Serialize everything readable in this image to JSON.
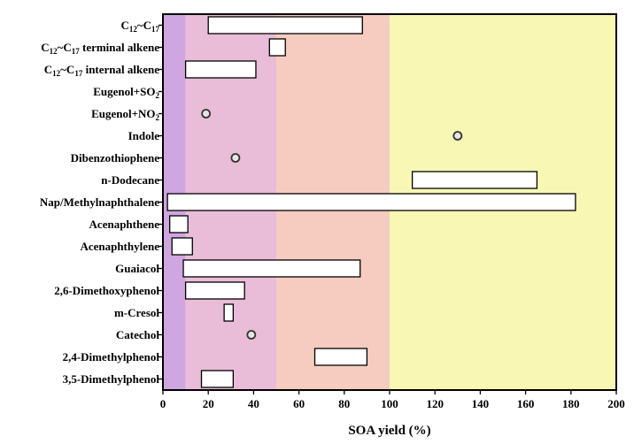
{
  "chart_data": {
    "type": "bar",
    "subtype": "floating-range with single-point markers",
    "xlabel": "SOA yield (%)",
    "ylabel": "",
    "xlim": [
      0,
      200
    ],
    "xticks": [
      "0",
      "20",
      "40",
      "60",
      "80",
      "100",
      "120",
      "140",
      "160",
      "180",
      "200"
    ],
    "grid": false,
    "legend": "none",
    "background_bands": [
      {
        "from": 0,
        "to": 10,
        "color": "#cfa6df"
      },
      {
        "from": 10,
        "to": 50,
        "color": "#e9bcd7"
      },
      {
        "from": 50,
        "to": 100,
        "color": "#f6ccc0"
      },
      {
        "from": 100,
        "to": 200,
        "color": "#f8f7b4"
      }
    ],
    "categories": [
      {
        "label": "C",
        "sub1": "12",
        "mid": "~C",
        "sub2": "17",
        "suffix": "",
        "min": 20,
        "max": 88
      },
      {
        "label": "C",
        "sub1": "12",
        "mid": "~C",
        "sub2": "17",
        "suffix": " terminal alkene",
        "min": 47,
        "max": 54
      },
      {
        "label": "C",
        "sub1": "12",
        "mid": "~C",
        "sub2": "17",
        "suffix": " internal alkene",
        "min": 10,
        "max": 41
      },
      {
        "label": "Eugenol+SO",
        "sub1": "2",
        "mid": "",
        "sub2": "",
        "suffix": "",
        "min": null,
        "max": null
      },
      {
        "label": "Eugenol+NO",
        "sub1": "2",
        "mid": "",
        "sub2": "",
        "suffix": "",
        "point": 19
      },
      {
        "label": "Indole",
        "sub1": "",
        "mid": "",
        "sub2": "",
        "suffix": "",
        "point": 130
      },
      {
        "label": "Dibenzothiophene",
        "sub1": "",
        "mid": "",
        "sub2": "",
        "suffix": "",
        "point": 32
      },
      {
        "label": "n-Dodecane",
        "sub1": "",
        "mid": "",
        "sub2": "",
        "suffix": "",
        "min": 110,
        "max": 165
      },
      {
        "label": "Nap/Methylnaphthalene",
        "sub1": "",
        "mid": "",
        "sub2": "",
        "suffix": "",
        "min": 2,
        "max": 182
      },
      {
        "label": "Acenaphthene",
        "sub1": "",
        "mid": "",
        "sub2": "",
        "suffix": "",
        "min": 3,
        "max": 11
      },
      {
        "label": "Acenaphthylene",
        "sub1": "",
        "mid": "",
        "sub2": "",
        "suffix": "",
        "min": 4,
        "max": 13
      },
      {
        "label": "Guaiacol",
        "sub1": "",
        "mid": "",
        "sub2": "",
        "suffix": "",
        "min": 9,
        "max": 87
      },
      {
        "label": "2,6-Dimethoxyphenol",
        "sub1": "",
        "mid": "",
        "sub2": "",
        "suffix": "",
        "min": 10,
        "max": 36
      },
      {
        "label": "m-Cresol",
        "sub1": "",
        "mid": "",
        "sub2": "",
        "suffix": "",
        "min": 27,
        "max": 31
      },
      {
        "label": "Catechol",
        "sub1": "",
        "mid": "",
        "sub2": "",
        "suffix": "",
        "point": 39
      },
      {
        "label": "2,4-Dimethylphenol",
        "sub1": "",
        "mid": "",
        "sub2": "",
        "suffix": "",
        "min": 67,
        "max": 90
      },
      {
        "label": "3,5-Dimethylphenol",
        "sub1": "",
        "mid": "",
        "sub2": "",
        "suffix": "",
        "min": 17,
        "max": 31
      }
    ],
    "bar_fill": "#ffffff",
    "bar_stroke": "#000000",
    "marker_fill": "#e6e6e6",
    "marker_stroke": "#333333"
  }
}
